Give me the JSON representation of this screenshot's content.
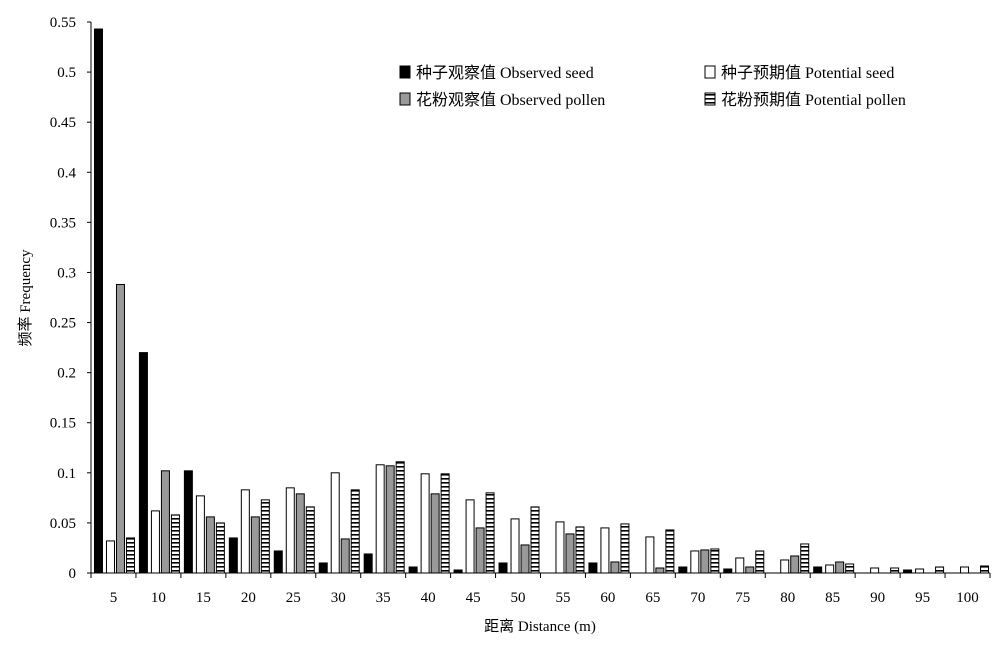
{
  "chart_data": {
    "type": "bar",
    "title": "",
    "xlabel": "距离 Distance (m)",
    "ylabel": "频率 Frequency",
    "ylim": [
      0,
      0.55
    ],
    "yticks": [
      0,
      0.05,
      0.1,
      0.15,
      0.2,
      0.25,
      0.3,
      0.35,
      0.4,
      0.45,
      0.5,
      0.55
    ],
    "ytick_labels": [
      "0",
      "0.05",
      "0.1",
      "0.15",
      "0.2",
      "0.25",
      "0.3",
      "0.35",
      "0.4",
      "0.45",
      "0.5",
      "0.55"
    ],
    "grid": false,
    "legend_position": "top-right",
    "categories": [
      "5",
      "10",
      "15",
      "20",
      "25",
      "30",
      "35",
      "40",
      "45",
      "50",
      "55",
      "60",
      "65",
      "70",
      "75",
      "80",
      "85",
      "90",
      "95",
      "100"
    ],
    "series": [
      {
        "name": "种子观察值 Observed seed",
        "style": "solid-black",
        "values": [
          0.543,
          0.22,
          0.102,
          0.035,
          0.022,
          0.01,
          0.019,
          0.006,
          0.003,
          0.01,
          0,
          0.01,
          0,
          0.006,
          0.004,
          0,
          0.006,
          0,
          0.003,
          0
        ]
      },
      {
        "name": "种子预期值  Potential seed",
        "style": "white",
        "values": [
          0.032,
          0.062,
          0.077,
          0.083,
          0.085,
          0.1,
          0.108,
          0.099,
          0.073,
          0.054,
          0.051,
          0.045,
          0.036,
          0.022,
          0.015,
          0.013,
          0.008,
          0.005,
          0.004,
          0.006
        ]
      },
      {
        "name": "花粉观察值 Observed pollen",
        "style": "gray",
        "values": [
          0.288,
          0.102,
          0.056,
          0.056,
          0.079,
          0.034,
          0.107,
          0.079,
          0.045,
          0.028,
          0.039,
          0.011,
          0.005,
          0.023,
          0.006,
          0.017,
          0.011,
          0,
          0,
          0
        ]
      },
      {
        "name": "花粉预期值  Potential pollen",
        "style": "striped",
        "values": [
          0.035,
          0.058,
          0.05,
          0.073,
          0.066,
          0.083,
          0.111,
          0.099,
          0.08,
          0.066,
          0.046,
          0.049,
          0.043,
          0.024,
          0.022,
          0.029,
          0.009,
          0.005,
          0.006,
          0.007
        ]
      }
    ],
    "colors": {
      "solid-black": "#000000",
      "white": "#ffffff",
      "gray": "#999999",
      "stroke": "#000000"
    }
  }
}
